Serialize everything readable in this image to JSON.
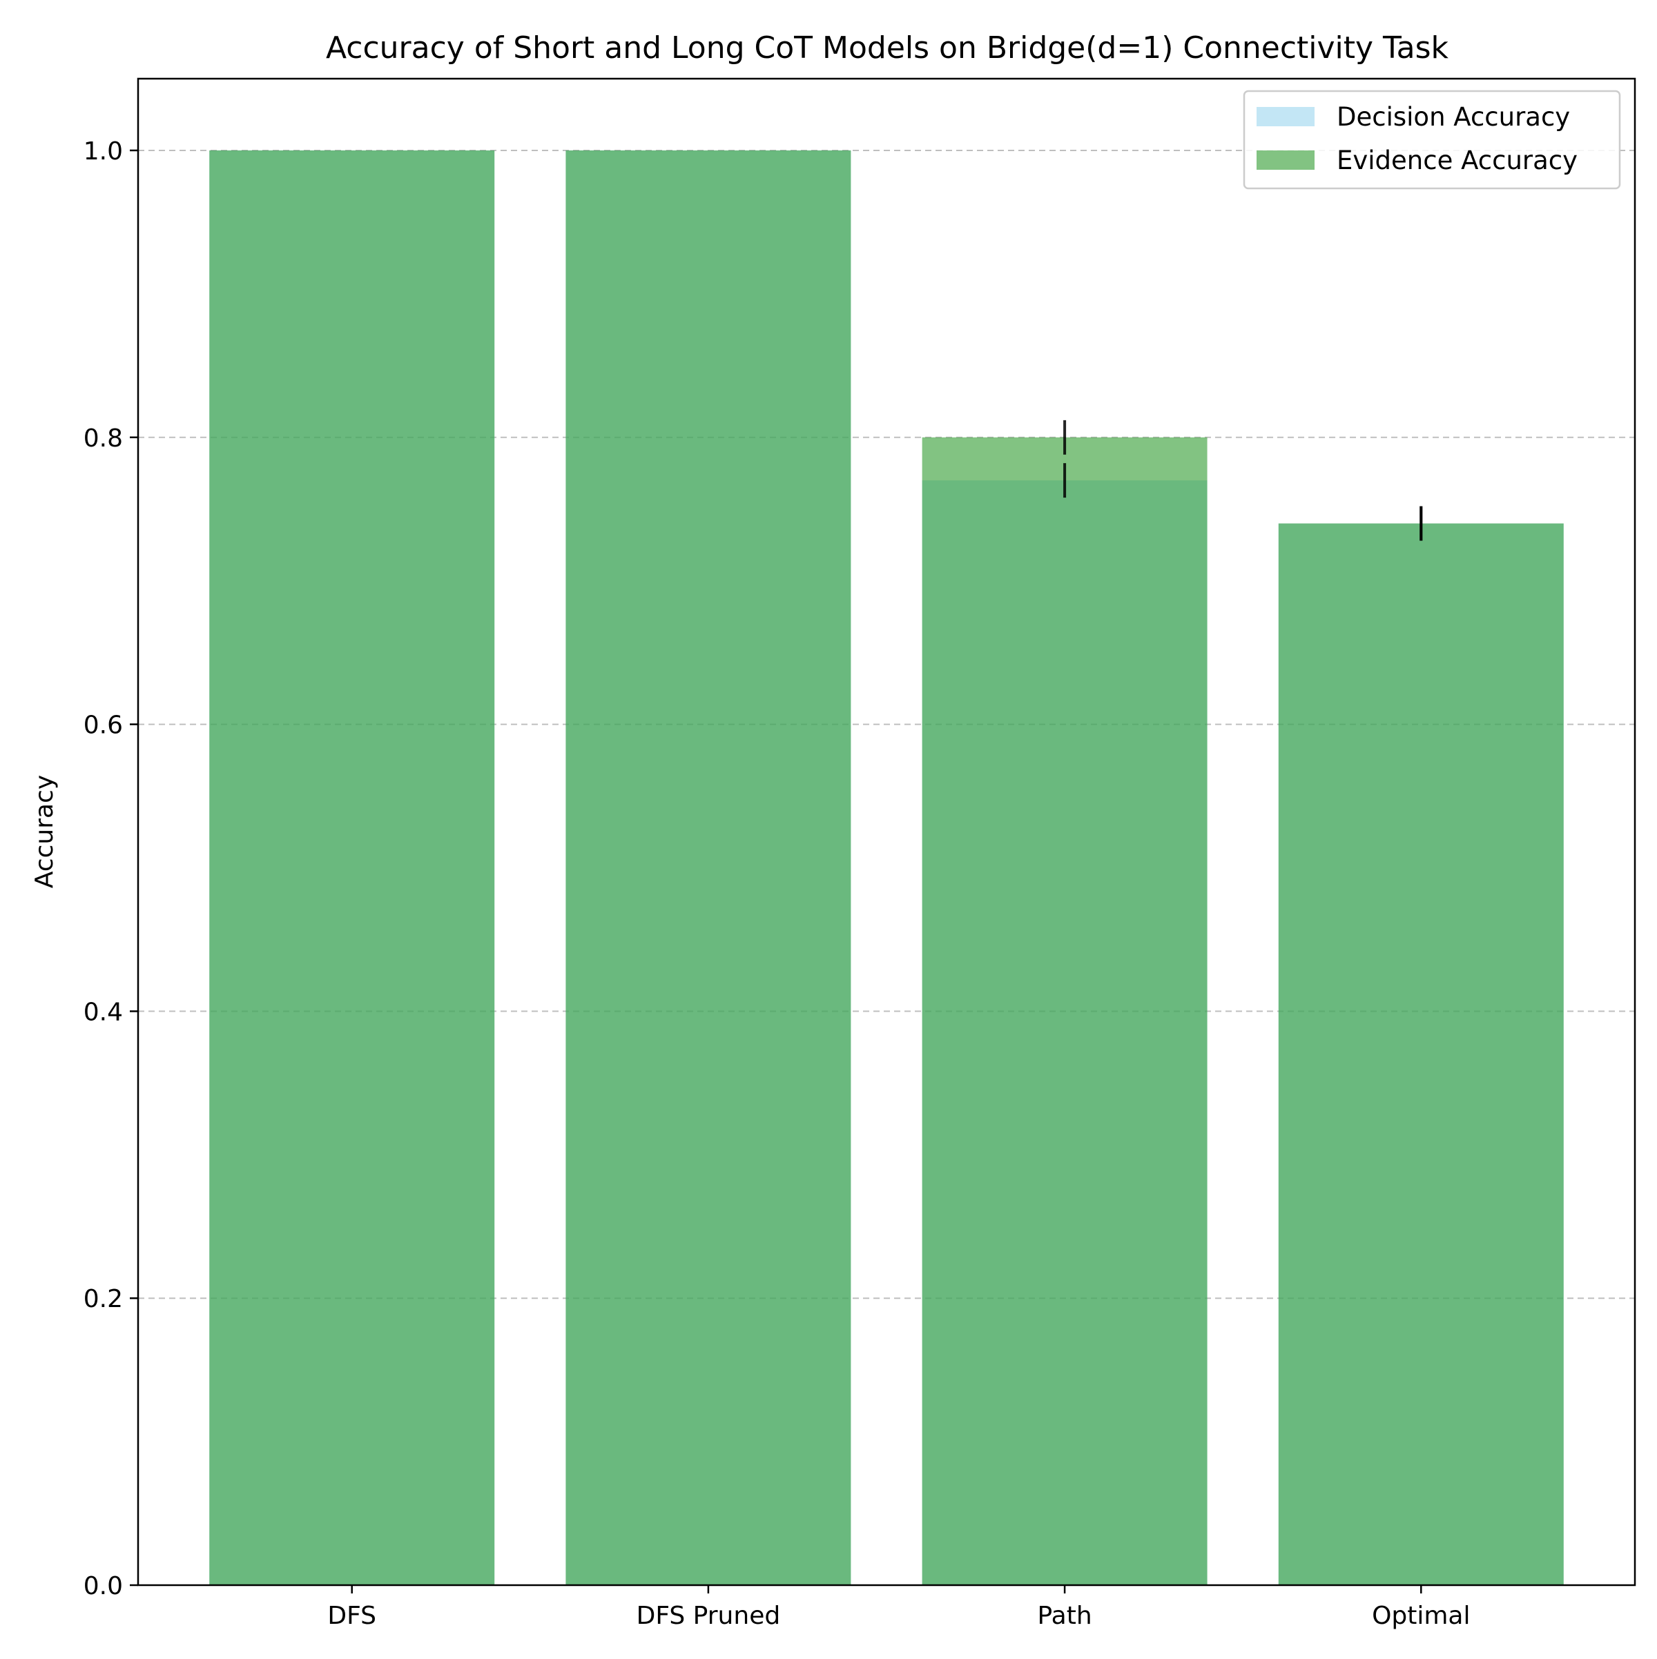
{
  "chart_data": {
    "type": "bar",
    "title": "Accuracy of Short and Long CoT Models on Bridge(d=1) Connectivity Task",
    "xlabel": "",
    "ylabel": "Accuracy",
    "categories": [
      "DFS",
      "DFS Pruned",
      "Path",
      "Optimal"
    ],
    "ylim": [
      0,
      1.05
    ],
    "yticks": [
      0.0,
      0.2,
      0.4,
      0.6,
      0.8,
      1.0
    ],
    "ytick_labels": [
      "0.0",
      "0.2",
      "0.4",
      "0.6",
      "0.8",
      "1.0"
    ],
    "grid": "y dashed",
    "legend_position": "top-right",
    "series": [
      {
        "name": "Decision Accuracy",
        "color": "#87ceeb",
        "opacity": 0.5,
        "values": [
          1.0,
          1.0,
          0.77,
          0.74
        ],
        "errors": [
          0.0,
          0.0,
          0.012,
          0.012
        ]
      },
      {
        "name": "Evidence Accuracy",
        "color": "#2e9b2e",
        "opacity": 0.6,
        "values": [
          1.0,
          1.0,
          0.8,
          0.74
        ],
        "errors": [
          0.0,
          0.0,
          0.012,
          0.012
        ]
      }
    ]
  }
}
